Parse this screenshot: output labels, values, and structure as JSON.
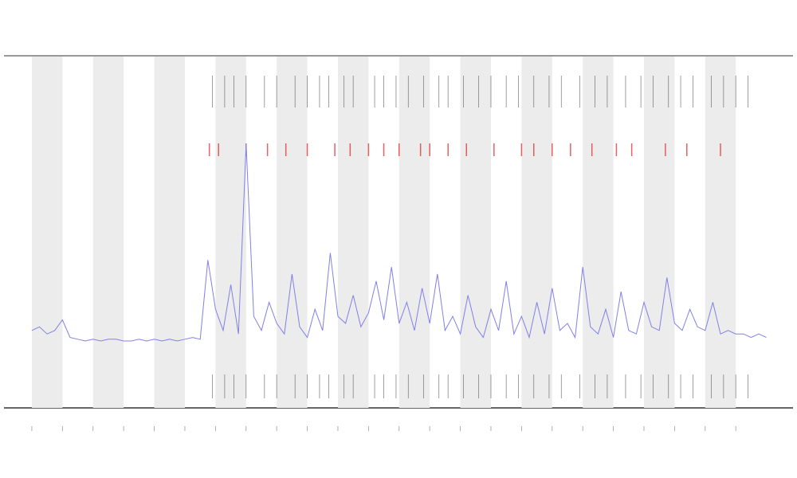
{
  "chart_data": {
    "type": "line",
    "xlim": [
      -0.91,
      24.87
    ],
    "ylim": [
      0,
      100
    ],
    "xticks": [
      0,
      1,
      2,
      3,
      4,
      5,
      6,
      7,
      8,
      9,
      10,
      11,
      12,
      13,
      14,
      15,
      16,
      17,
      18,
      19,
      20,
      21,
      22,
      23
    ],
    "shade_bands": true,
    "x": [
      0,
      0.25,
      0.5,
      0.75,
      1,
      1.25,
      1.5,
      1.75,
      2,
      2.25,
      2.5,
      2.75,
      3,
      3.25,
      3.5,
      3.75,
      4,
      4.25,
      4.5,
      4.75,
      5,
      5.25,
      5.5,
      5.75,
      6,
      6.25,
      6.5,
      6.75,
      7,
      7.25,
      7.5,
      7.75,
      8,
      8.25,
      8.5,
      8.75,
      9,
      9.25,
      9.5,
      9.75,
      10,
      10.25,
      10.5,
      10.75,
      11,
      11.25,
      11.5,
      11.75,
      12,
      12.25,
      12.5,
      12.75,
      13,
      13.25,
      13.5,
      13.75,
      14,
      14.25,
      14.5,
      14.75,
      15,
      15.25,
      15.5,
      15.75,
      16,
      16.25,
      16.5,
      16.75,
      17,
      17.25,
      17.5,
      17.75,
      18,
      18.25,
      18.5,
      18.75,
      19,
      19.25,
      19.5,
      19.75,
      20,
      20.25,
      20.5,
      20.75,
      21,
      21.25,
      21.5,
      21.75,
      22,
      22.25,
      22.5,
      22.75,
      23,
      23.25,
      23.5,
      23.75,
      24
    ],
    "series": [
      {
        "color": "#8080e8",
        "values": [
          22,
          23,
          21,
          22,
          25,
          20,
          19.5,
          19,
          19.5,
          19,
          19.5,
          19.5,
          19,
          19,
          19.5,
          19,
          19.5,
          19,
          19.5,
          19,
          19.5,
          20,
          19.5,
          42,
          28,
          22,
          35,
          21,
          75,
          26,
          22,
          30,
          24,
          21,
          38,
          23,
          20,
          28,
          22,
          44,
          26,
          24,
          32,
          23,
          27,
          36,
          25,
          40,
          24,
          30,
          22,
          34,
          24,
          38,
          22,
          26,
          21,
          32,
          23,
          20,
          28,
          22,
          36,
          21,
          26,
          20,
          30,
          21,
          34,
          22,
          24,
          20,
          40,
          23,
          21,
          28,
          20,
          33,
          22,
          21,
          30,
          23,
          22,
          37,
          24,
          22,
          28,
          23,
          22,
          30,
          21,
          22,
          21,
          21,
          20,
          21,
          20
        ]
      }
    ],
    "events": {
      "color": "#555555",
      "x": [
        5.9,
        6.3,
        6.6,
        7.0,
        7.6,
        8.0,
        8.6,
        9.0,
        9.4,
        9.7,
        10.2,
        10.5,
        11.2,
        11.5,
        11.9,
        12.3,
        12.8,
        13.3,
        13.6,
        14.1,
        14.6,
        15.0,
        15.5,
        15.9,
        16.4,
        16.9,
        17.3,
        17.9,
        18.4,
        18.8,
        19.4,
        19.9,
        20.3,
        20.8,
        21.2,
        21.6,
        22.2,
        22.6,
        23.0,
        23.4
      ]
    },
    "alerts": {
      "color": "#e02020",
      "x": [
        5.8,
        6.1,
        7.0,
        7.7,
        8.3,
        9.0,
        9.9,
        10.4,
        11.0,
        11.5,
        12.0,
        12.7,
        13.0,
        13.6,
        14.2,
        15.1,
        16.0,
        16.4,
        17.0,
        17.6,
        18.3,
        19.1,
        19.6,
        20.7,
        21.4,
        22.5
      ]
    }
  }
}
